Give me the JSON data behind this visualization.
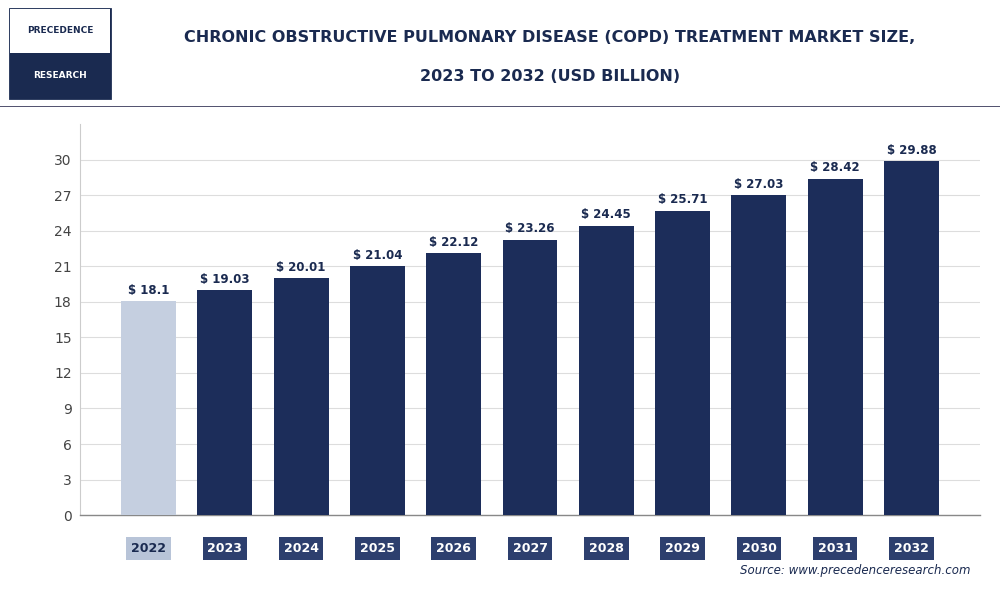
{
  "categories": [
    "2022",
    "2023",
    "2024",
    "2025",
    "2026",
    "2027",
    "2028",
    "2029",
    "2030",
    "2031",
    "2032"
  ],
  "values": [
    18.1,
    19.03,
    20.01,
    21.04,
    22.12,
    23.26,
    24.45,
    25.71,
    27.03,
    28.42,
    29.88
  ],
  "labels": [
    "$ 18.1",
    "$ 19.03",
    "$ 20.01",
    "$ 21.04",
    "$ 22.12",
    "$ 23.26",
    "$ 24.45",
    "$ 25.71",
    "$ 27.03",
    "$ 28.42",
    "$ 29.88"
  ],
  "first_bar_color": "#c5cfe0",
  "dark_bar_color": "#1c2d5a",
  "title_line1": "CHRONIC OBSTRUCTIVE PULMONARY DISEASE (COPD) TREATMENT MARKET SIZE,",
  "title_line2": "2023 TO 2032 (USD BILLION)",
  "yticks": [
    0,
    3,
    6,
    9,
    12,
    15,
    18,
    21,
    24,
    27,
    30
  ],
  "ylim": [
    0,
    33
  ],
  "source_text": "Source: www.precedenceresearch.com",
  "bg_color": "#ffffff",
  "grid_color": "#dddddd",
  "title_color": "#1a2a50",
  "bar_label_color": "#1a2a50",
  "axis_label_color": "#444444",
  "source_color": "#1a2a50",
  "tick_bg_first": "#b8c4d8",
  "tick_bg_dark": "#2d3f6e",
  "tick_text_first": "#1a2a50",
  "tick_text_dark": "#ffffff",
  "header_line_color": "#333355",
  "logo_border_color": "#1a2a50",
  "logo_bg_top": "#ffffff",
  "logo_bg_bot": "#1a2a50",
  "logo_text_top": "#1a2a50",
  "logo_text_bot": "#ffffff"
}
